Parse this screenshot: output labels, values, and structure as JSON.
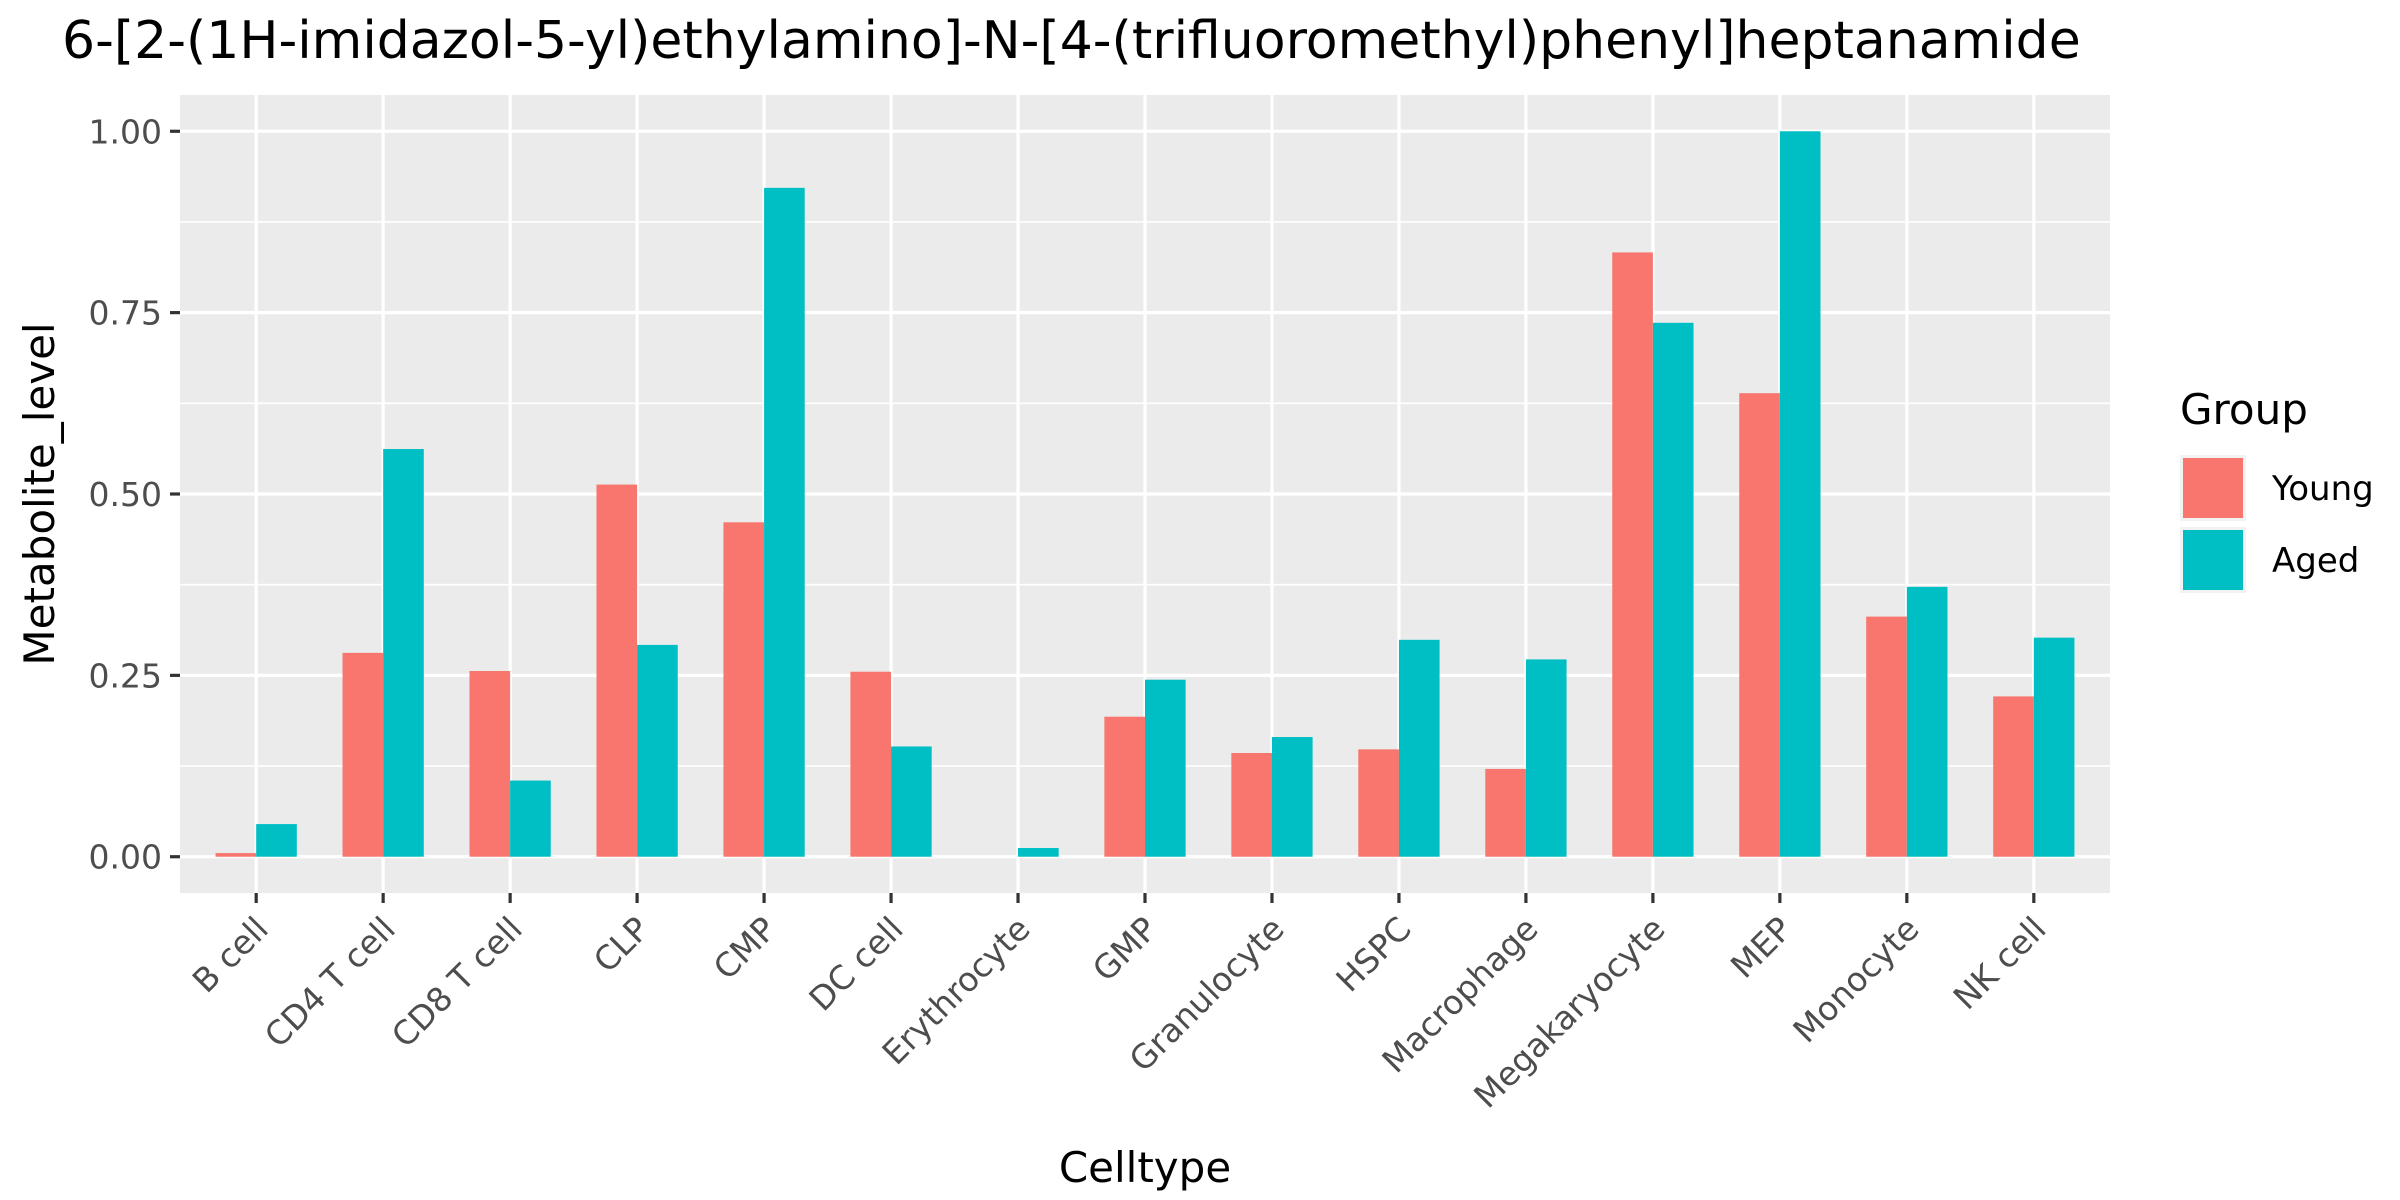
{
  "chart_data": {
    "type": "bar",
    "title": "6-[2-(1H-imidazol-5-yl)ethylamino]-N-[4-(trifluoromethyl)phenyl]heptanamide",
    "xlabel": "Celltype",
    "ylabel": "Metabolite_level",
    "ylim": [
      -0.05,
      1.05
    ],
    "yticks": [
      0.0,
      0.25,
      0.5,
      0.75,
      1.0
    ],
    "ytick_labels": [
      "0.00",
      "0.25",
      "0.50",
      "0.75",
      "1.00"
    ],
    "grid": true,
    "legend": {
      "title": "Group",
      "position": "right"
    },
    "categories": [
      "B cell",
      "CD4 T cell",
      "CD8 T cell",
      "CLP",
      "CMP",
      "DC cell",
      "Erythrocyte",
      "GMP",
      "Granulocyte",
      "HSPC",
      "Macrophage",
      "Megakaryocyte",
      "MEP",
      "Monocyte",
      "NK cell"
    ],
    "series": [
      {
        "name": "Young",
        "color": "#F8766D",
        "values": [
          0.005,
          0.281,
          0.256,
          0.513,
          0.461,
          0.255,
          0.0,
          0.193,
          0.143,
          0.148,
          0.121,
          0.833,
          0.639,
          0.331,
          0.221
        ]
      },
      {
        "name": "Aged",
        "color": "#00BFC4",
        "values": [
          0.045,
          0.562,
          0.105,
          0.292,
          0.922,
          0.152,
          0.012,
          0.244,
          0.165,
          0.299,
          0.272,
          0.736,
          1.0,
          0.372,
          0.302
        ]
      }
    ]
  }
}
